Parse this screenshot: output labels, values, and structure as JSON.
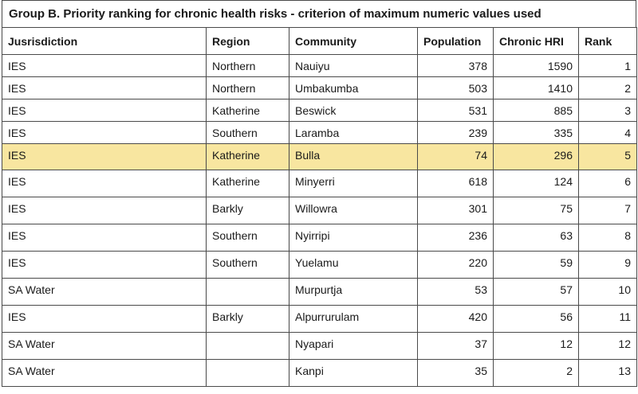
{
  "title": "Group B. Priority ranking for chronic health risks - criterion of maximum numeric values used",
  "headers": [
    "Jusrisdiction",
    "Region",
    "Community",
    "Population",
    "Chronic HRI",
    "Rank"
  ],
  "highlight_color": "#f8e6a0",
  "rows": [
    {
      "jurisdiction": "IES",
      "region": "Northern",
      "community": "Nauiyu",
      "population": "378",
      "chronic_hri": "1590",
      "rank": "1"
    },
    {
      "jurisdiction": "IES",
      "region": "Northern",
      "community": "Umbakumba",
      "population": "503",
      "chronic_hri": "1410",
      "rank": "2"
    },
    {
      "jurisdiction": "IES",
      "region": "Katherine",
      "community": "Beswick",
      "population": "531",
      "chronic_hri": "885",
      "rank": "3"
    },
    {
      "jurisdiction": "IES",
      "region": "Southern",
      "community": "Laramba",
      "population": "239",
      "chronic_hri": "335",
      "rank": "4"
    },
    {
      "jurisdiction": "IES",
      "region": "Katherine",
      "community": "Bulla",
      "population": "74",
      "chronic_hri": "296",
      "rank": "5",
      "highlighted": true
    },
    {
      "jurisdiction": "IES",
      "region": "Katherine",
      "community": "Minyerri",
      "population": "618",
      "chronic_hri": "124",
      "rank": "6"
    },
    {
      "jurisdiction": "IES",
      "region": "Barkly",
      "community": "Willowra",
      "population": "301",
      "chronic_hri": "75",
      "rank": "7"
    },
    {
      "jurisdiction": "IES",
      "region": "Southern",
      "community": "Nyirripi",
      "population": "236",
      "chronic_hri": "63",
      "rank": "8"
    },
    {
      "jurisdiction": "IES",
      "region": "Southern",
      "community": "Yuelamu",
      "population": "220",
      "chronic_hri": "59",
      "rank": "9"
    },
    {
      "jurisdiction": "SA Water",
      "region": "",
      "community": "Murpurtja",
      "population": "53",
      "chronic_hri": "57",
      "rank": "10"
    },
    {
      "jurisdiction": "IES",
      "region": "Barkly",
      "community": "Alpurrurulam",
      "population": "420",
      "chronic_hri": "56",
      "rank": "11"
    },
    {
      "jurisdiction": "SA Water",
      "region": "",
      "community": "Nyapari",
      "population": "37",
      "chronic_hri": "12",
      "rank": "12"
    },
    {
      "jurisdiction": "SA Water",
      "region": "",
      "community": "Kanpi",
      "population": "35",
      "chronic_hri": "2",
      "rank": "13"
    }
  ]
}
